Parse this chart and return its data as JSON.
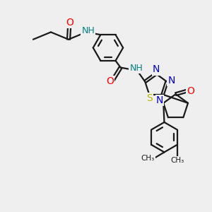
{
  "bg_color": "#efefef",
  "bond_color": "#1a1a1a",
  "bond_width": 1.6,
  "atom_colors": {
    "O": "#ff0000",
    "N": "#0000cd",
    "S": "#b8b800",
    "H": "#008080",
    "C": "#1a1a1a"
  },
  "font_size": 9,
  "xlim": [
    0,
    10
  ],
  "ylim": [
    0,
    10
  ]
}
